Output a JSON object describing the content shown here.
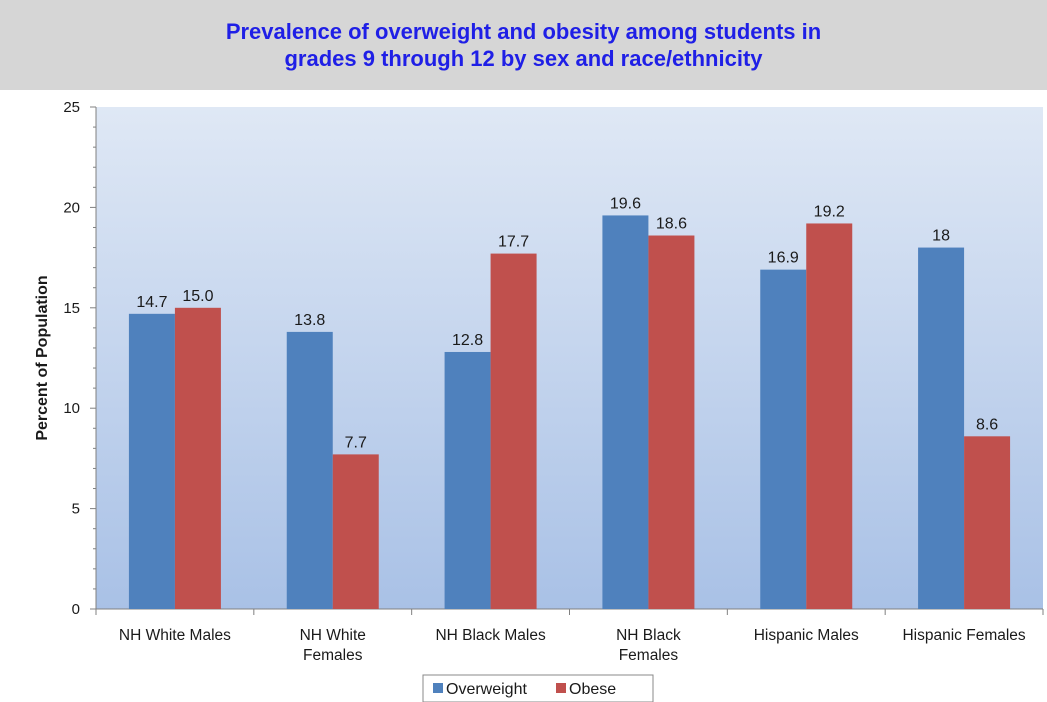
{
  "chart_data": {
    "type": "bar",
    "title_lines": [
      "Prevalence of overweight and obesity among students in",
      "grades 9 through 12 by sex and race/ethnicity"
    ],
    "ylabel": "Percent of Population",
    "xlabel": "",
    "ylim": [
      0,
      25
    ],
    "yticks": [
      0,
      5,
      10,
      15,
      20,
      25
    ],
    "categories": [
      [
        "NH White Males"
      ],
      [
        "NH White",
        "Females"
      ],
      [
        "NH Black Males"
      ],
      [
        "NH Black",
        "Females"
      ],
      [
        "Hispanic Males"
      ],
      [
        "Hispanic Females"
      ]
    ],
    "series": [
      {
        "name": "Overweight",
        "color": "#4f81bd",
        "values": [
          14.7,
          13.8,
          12.8,
          19.6,
          16.9,
          18
        ],
        "labels": [
          "14.7",
          "13.8",
          "12.8",
          "19.6",
          "16.9",
          "18"
        ]
      },
      {
        "name": "Obese",
        "color": "#c0504d",
        "values": [
          15.0,
          7.7,
          17.7,
          18.6,
          19.2,
          8.6
        ],
        "labels": [
          "15.0",
          "7.7",
          "17.7",
          "18.6",
          "19.2",
          "8.6"
        ]
      }
    ],
    "grid": false,
    "legend_position": "bottom-center",
    "background_gradient": [
      "#dfe8f5",
      "#a9c1e6"
    ]
  }
}
